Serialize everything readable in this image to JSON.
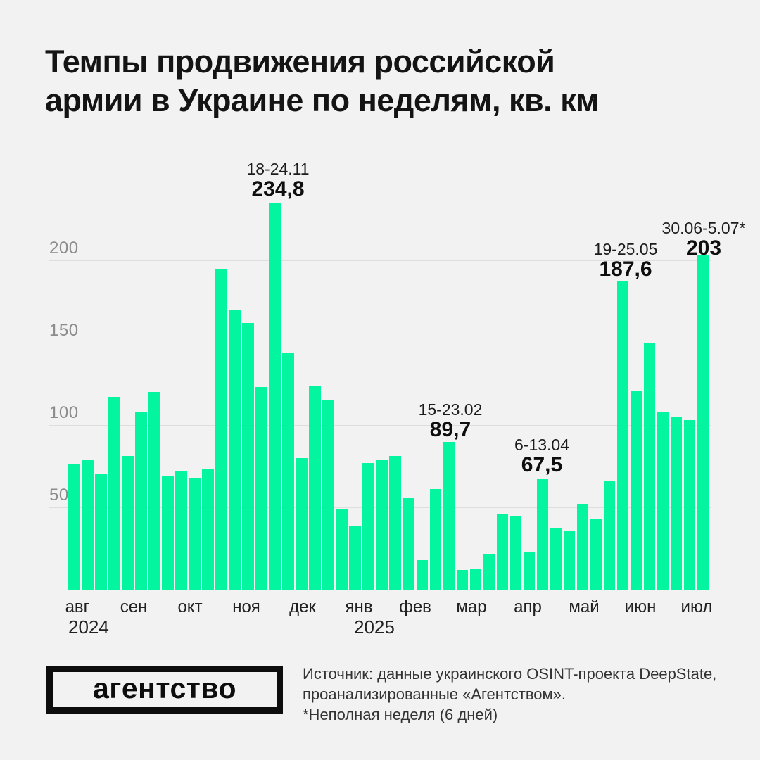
{
  "title": {
    "line1": "Темпы продвижения российской",
    "line2": "армии в Украине по неделям, кв. км"
  },
  "chart_data": {
    "type": "bar",
    "title": "Темпы продвижения российской армии в Украине по неделям, кв. км",
    "ylabel": "кв. км",
    "ylim": [
      0,
      240
    ],
    "yticks": [
      "50",
      "100",
      "150",
      "200"
    ],
    "grid": true,
    "bar_color": "#03F5A0",
    "categories_months": [
      "авг",
      "сен",
      "окт",
      "ноя",
      "дек",
      "янв",
      "фев",
      "мар",
      "апр",
      "май",
      "июн",
      "июл"
    ],
    "year_labels": [
      "2024",
      "2025"
    ],
    "values": [
      76,
      79,
      70,
      117,
      81,
      108,
      120,
      69,
      72,
      68,
      73,
      195,
      170,
      162,
      123,
      234.8,
      144,
      80,
      124,
      115,
      49,
      39,
      77,
      79,
      81,
      56,
      18,
      61,
      89.7,
      12,
      13,
      22,
      46,
      45,
      23,
      67.5,
      37,
      36,
      52,
      43,
      66,
      187.6,
      121,
      150,
      108,
      105,
      103,
      203
    ],
    "annotations": [
      {
        "date": "18-24.11",
        "value": "234,8",
        "bar_index": 15
      },
      {
        "date": "15-23.02",
        "value": "89,7",
        "bar_index": 28
      },
      {
        "date": "6-13.04",
        "value": "67,5",
        "bar_index": 35
      },
      {
        "date": "19-25.05",
        "value": "187,6",
        "bar_index": 41
      },
      {
        "date": "30.06-5.07*",
        "value": "203",
        "bar_index": 47
      }
    ]
  },
  "footer": {
    "logo_text": "агентство",
    "source_line1": "Источник: данные украинского OSINT-проекта DeepState,",
    "source_line2": "проанализированные «Агентством».",
    "source_line3": "*Неполная неделя (6 дней)"
  }
}
